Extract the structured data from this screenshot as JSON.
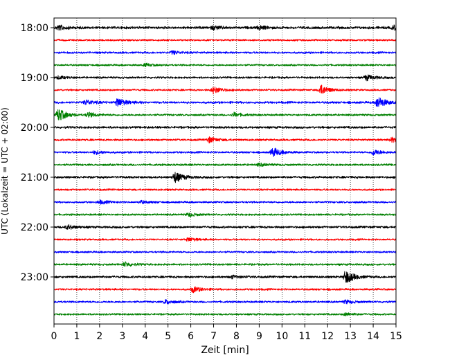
{
  "chart_data": {
    "type": "line",
    "title": "",
    "xlabel": "Zeit  [min]",
    "ylabel": "UTC (Lokalzeit = UTC + 02:00)",
    "xlim": [
      0,
      15
    ],
    "x_ticks": [
      "0",
      "1",
      "2",
      "3",
      "4",
      "5",
      "6",
      "7",
      "8",
      "9",
      "10",
      "11",
      "12",
      "13",
      "14",
      "15"
    ],
    "y_tick_labels": [
      "18:00",
      "19:00",
      "20:00",
      "21:00",
      "22:00",
      "23:00"
    ],
    "grid": "vertical-dotted",
    "colors": [
      "#000000",
      "#ff0000",
      "#0000ff",
      "#008000"
    ],
    "series": [
      {
        "start": "18:00",
        "color": "#000000",
        "amp": 2.0,
        "events": [
          [
            0.2,
            3.5
          ],
          [
            7.0,
            2.5
          ],
          [
            9.0,
            2.5
          ],
          [
            14.9,
            3.0
          ]
        ]
      },
      {
        "start": "18:15",
        "color": "#ff0000",
        "amp": 1.5,
        "events": []
      },
      {
        "start": "18:30",
        "color": "#0000ff",
        "amp": 1.6,
        "events": [
          [
            5.2,
            2.5
          ]
        ]
      },
      {
        "start": "18:45",
        "color": "#008000",
        "amp": 1.5,
        "events": [
          [
            4.0,
            2.0
          ]
        ]
      },
      {
        "start": "19:00",
        "color": "#000000",
        "amp": 1.6,
        "events": [
          [
            0.2,
            2.0
          ],
          [
            13.7,
            4.0
          ]
        ]
      },
      {
        "start": "19:15",
        "color": "#ff0000",
        "amp": 1.5,
        "events": [
          [
            7.0,
            5.0
          ],
          [
            11.7,
            7.0
          ]
        ]
      },
      {
        "start": "19:30",
        "color": "#0000ff",
        "amp": 1.8,
        "events": [
          [
            1.4,
            3.5
          ],
          [
            2.8,
            6.0
          ],
          [
            14.2,
            8.0
          ]
        ]
      },
      {
        "start": "19:45",
        "color": "#008000",
        "amp": 1.6,
        "events": [
          [
            0.2,
            9.0
          ],
          [
            1.5,
            3.5
          ],
          [
            7.9,
            3.0
          ]
        ]
      },
      {
        "start": "20:00",
        "color": "#000000",
        "amp": 1.8,
        "events": []
      },
      {
        "start": "20:15",
        "color": "#ff0000",
        "amp": 1.6,
        "events": [
          [
            6.8,
            4.0
          ],
          [
            14.8,
            3.0
          ]
        ]
      },
      {
        "start": "20:30",
        "color": "#0000ff",
        "amp": 1.6,
        "events": [
          [
            1.8,
            2.5
          ],
          [
            9.6,
            6.5
          ],
          [
            14.0,
            4.0
          ]
        ]
      },
      {
        "start": "20:45",
        "color": "#008000",
        "amp": 1.6,
        "events": [
          [
            9.0,
            2.0
          ]
        ]
      },
      {
        "start": "21:00",
        "color": "#000000",
        "amp": 1.8,
        "events": [
          [
            5.3,
            7.5
          ]
        ]
      },
      {
        "start": "21:15",
        "color": "#ff0000",
        "amp": 1.5,
        "events": []
      },
      {
        "start": "21:30",
        "color": "#0000ff",
        "amp": 1.6,
        "events": [
          [
            2.0,
            2.5
          ],
          [
            3.8,
            2.0
          ]
        ]
      },
      {
        "start": "21:45",
        "color": "#008000",
        "amp": 1.5,
        "events": [
          [
            5.9,
            2.5
          ]
        ]
      },
      {
        "start": "22:00",
        "color": "#000000",
        "amp": 1.8,
        "events": [
          [
            0.6,
            3.0
          ]
        ]
      },
      {
        "start": "22:15",
        "color": "#ff0000",
        "amp": 1.5,
        "events": [
          [
            5.9,
            2.5
          ]
        ]
      },
      {
        "start": "22:30",
        "color": "#0000ff",
        "amp": 1.5,
        "events": []
      },
      {
        "start": "22:45",
        "color": "#008000",
        "amp": 1.6,
        "events": [
          [
            3.1,
            3.0
          ]
        ]
      },
      {
        "start": "23:00",
        "color": "#000000",
        "amp": 1.8,
        "events": [
          [
            7.8,
            2.0
          ],
          [
            12.8,
            9.5
          ]
        ]
      },
      {
        "start": "23:15",
        "color": "#ff0000",
        "amp": 1.6,
        "events": [
          [
            6.1,
            4.0
          ]
        ]
      },
      {
        "start": "23:30",
        "color": "#0000ff",
        "amp": 1.6,
        "events": [
          [
            4.9,
            3.0
          ],
          [
            12.8,
            2.5
          ]
        ]
      },
      {
        "start": "23:45",
        "color": "#008000",
        "amp": 1.5,
        "events": [
          [
            12.8,
            2.0
          ]
        ]
      }
    ]
  }
}
